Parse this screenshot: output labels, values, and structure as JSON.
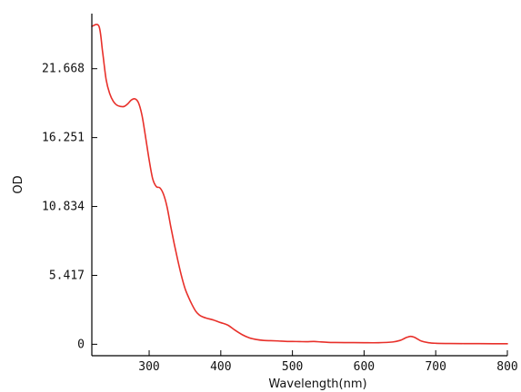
{
  "chart_data": {
    "type": "line",
    "xlabel": "Wavelength(nm)",
    "ylabel": "OD",
    "xlim": [
      220,
      800
    ],
    "ylim": [
      -0.9,
      26.0
    ],
    "x_ticks": [
      300,
      400,
      500,
      600,
      700,
      800
    ],
    "x_tick_labels": [
      "300",
      "400",
      "500",
      "600",
      "700",
      "800"
    ],
    "y_ticks": [
      0,
      5.417,
      10.834,
      16.251,
      21.668
    ],
    "y_tick_labels": [
      "0",
      "5.417",
      "10.834",
      "16.251",
      "21.668"
    ],
    "grid": false,
    "series": [
      {
        "color": "#e8302a",
        "x": [
          220,
          230,
          235,
          240,
          245,
          250,
          255,
          260,
          265,
          270,
          275,
          280,
          285,
          290,
          295,
          300,
          305,
          310,
          315,
          320,
          325,
          330,
          335,
          340,
          345,
          350,
          355,
          360,
          365,
          370,
          375,
          380,
          390,
          400,
          410,
          420,
          430,
          440,
          450,
          460,
          470,
          480,
          490,
          500,
          510,
          520,
          530,
          540,
          550,
          560,
          580,
          600,
          620,
          640,
          650,
          655,
          660,
          665,
          670,
          675,
          680,
          690,
          700,
          720,
          750,
          780,
          800
        ],
        "y": [
          25.0,
          25.0,
          23.0,
          20.8,
          19.7,
          19.1,
          18.8,
          18.7,
          18.7,
          18.9,
          19.2,
          19.3,
          19.0,
          18.0,
          16.3,
          14.5,
          13.0,
          12.4,
          12.3,
          11.8,
          10.8,
          9.3,
          7.9,
          6.6,
          5.4,
          4.4,
          3.7,
          3.1,
          2.6,
          2.3,
          2.15,
          2.05,
          1.9,
          1.7,
          1.5,
          1.1,
          0.75,
          0.5,
          0.37,
          0.3,
          0.28,
          0.26,
          0.23,
          0.22,
          0.21,
          0.2,
          0.22,
          0.18,
          0.15,
          0.14,
          0.13,
          0.12,
          0.12,
          0.18,
          0.3,
          0.42,
          0.55,
          0.62,
          0.55,
          0.4,
          0.25,
          0.12,
          0.08,
          0.06,
          0.05,
          0.04,
          0.04
        ]
      }
    ]
  }
}
